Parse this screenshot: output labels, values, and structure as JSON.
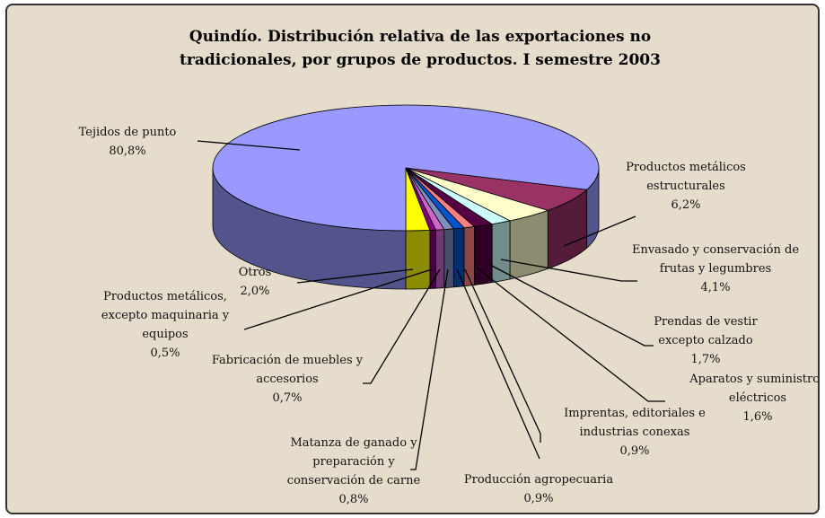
{
  "chart_data": {
    "type": "pie3d",
    "title": "Quindío.  Distribución relativa de las exportaciones no tradicionales, por grupos de productos.  I semestre 2003",
    "categories": [
      "Otros",
      "Productos metálicos, excepto maquinaria y equipos",
      "Fabricación de muebles y accesorios",
      "Matanza de ganado y preparación y conservación de carne",
      "Producción agropecuaria",
      "Imprentas, editoriales e industrias conexas",
      "Aparatos y suministros eléctricos",
      "Prendas de vestir excepto calzado",
      "Envasado y conservación de frutas y legumbres",
      "Productos metálicos estructurales",
      "Tejidos de punto"
    ],
    "values": [
      2.0,
      0.5,
      0.7,
      0.8,
      0.9,
      0.9,
      1.6,
      1.7,
      4.1,
      6.2,
      80.8
    ],
    "value_labels": [
      "2,0%",
      "0,5%",
      "0,7%",
      "0,8%",
      "0,9%",
      "0,9%",
      "1,6%",
      "1,7%",
      "4,1%",
      "6,2%",
      "80,8%"
    ],
    "colors": [
      "#ffff00",
      "#800080",
      "#cc66cc",
      "#7f8fbf",
      "#0055cc",
      "#ff8080",
      "#550044",
      "#ccffff",
      "#ffffcc",
      "#993366",
      "#9999ff"
    ]
  }
}
